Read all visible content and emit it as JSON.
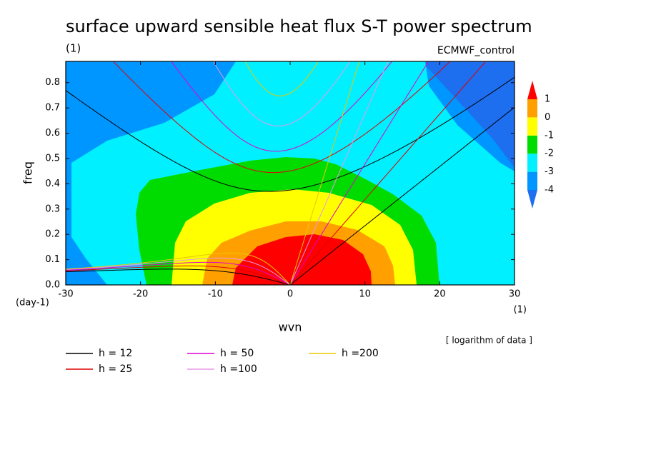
{
  "chart_data": {
    "type": "contour",
    "title": "surface upward sensible heat flux S-T power spectrum",
    "subtitle": "(1)",
    "annotation": "ECMWF_control",
    "note": "[ logarithm of data ]",
    "x_label": "wvn",
    "x_unit": "(1)",
    "y_label": "freq",
    "y_unit": "(day-1)",
    "xlim": [
      -30,
      30
    ],
    "xticks": [
      -30,
      -20,
      -10,
      0,
      10,
      20,
      30
    ],
    "ylim": [
      0,
      0.884
    ],
    "yticks": [
      {
        "value": 0,
        "label": "0.0"
      },
      0.1,
      0.2,
      0.3,
      0.4,
      0.5,
      0.6,
      0.7,
      0.8
    ],
    "colorbar": {
      "levels": [
        -4,
        -3,
        -2,
        -1,
        0,
        1
      ],
      "colors": [
        "#1e6ef0",
        "#0096ff",
        "#00f0ff",
        "#00dc00",
        "#ffff00",
        "#ffa000",
        "#ff0000"
      ]
    },
    "series": [
      {
        "name": "h = 12",
        "color": "#000000",
        "h": 12
      },
      {
        "name": "h = 25",
        "color": "#e00000",
        "h": 25
      },
      {
        "name": "h = 50",
        "color": "#e000d0",
        "h": 50
      },
      {
        "name": "h =100",
        "color": "#e898e8",
        "h": 100
      },
      {
        "name": "h =200",
        "color": "#e8c800",
        "h": 200
      }
    ]
  }
}
